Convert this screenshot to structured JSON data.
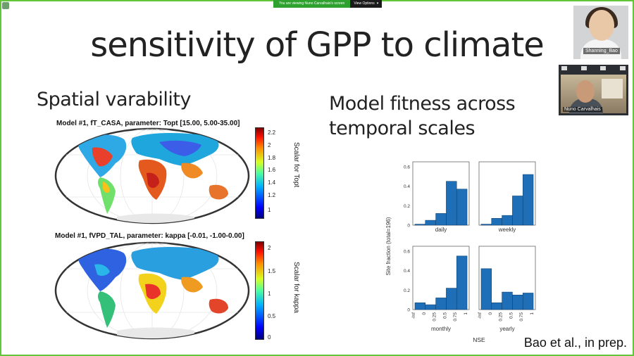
{
  "screen_share": {
    "viewing_text": "You are viewing Nuno Carvalhais's screen",
    "view_options": "View Options"
  },
  "slide": {
    "title": "sensitivity of GPP to climate",
    "left_heading": "Spatial varability",
    "right_heading_line1": "Model fitness across",
    "right_heading_line2": "temporal scales",
    "citation": "Bao et al., in prep."
  },
  "maps": [
    {
      "title": "Model #1, fT_CASA, parameter: Topt [15.00, 5.00-35.00]",
      "colorbar_label": "Scalar for Topt",
      "ticks": [
        "2.2",
        "2",
        "1.8",
        "1.6",
        "1.4",
        "1.2",
        "1"
      ]
    },
    {
      "title": "Model #1, fVPD_TAL, parameter: kappa [-0.01, -1.00-0.00]",
      "colorbar_label": "Scalar for kappa",
      "ticks": [
        "2",
        "1.5",
        "1",
        "0.5",
        "0"
      ]
    }
  ],
  "participants": {
    "p1": "Shanning_Bao",
    "p2": "Nuno Carvalhais"
  },
  "chart_data": {
    "type": "bar",
    "ylabel": "Site fraction (total=196)",
    "xlabel": "NSE",
    "ylim": [
      0,
      0.65
    ],
    "yticks": [
      "0",
      "0.2",
      "0.4",
      "0.6"
    ],
    "xticks": [
      "-Inf",
      "0",
      "0.25",
      "0.5",
      "0.75",
      "1"
    ],
    "panels": [
      {
        "name": "daily",
        "values": [
          0.01,
          0.05,
          0.12,
          0.45,
          0.37
        ]
      },
      {
        "name": "weekly",
        "values": [
          0.01,
          0.07,
          0.1,
          0.3,
          0.52
        ]
      },
      {
        "name": "monthly",
        "values": [
          0.07,
          0.05,
          0.12,
          0.22,
          0.55
        ]
      },
      {
        "name": "yearly",
        "values": [
          0.42,
          0.07,
          0.18,
          0.15,
          0.17
        ]
      }
    ],
    "bar_color": "#1f6fb8",
    "colors": {
      "frame": "#63c53a",
      "banner": "#2fa12f"
    }
  }
}
